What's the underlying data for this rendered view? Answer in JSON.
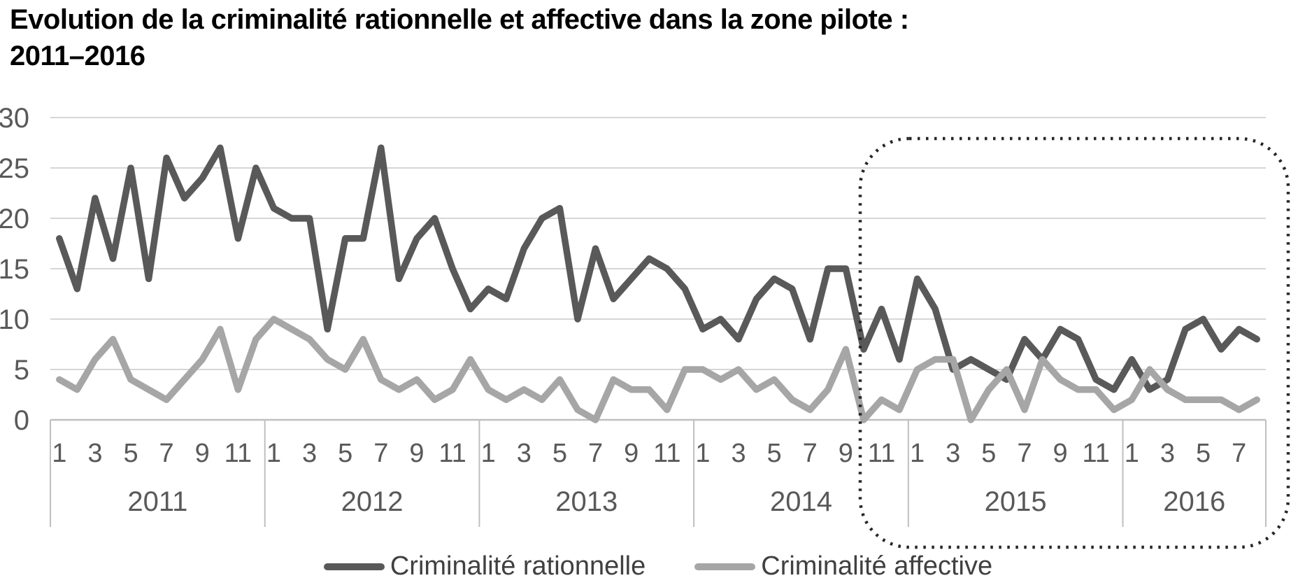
{
  "title": {
    "line1": "Evolution de la criminalité rationnelle et affective dans la zone pilote :",
    "line2": "2011–2016"
  },
  "colors": {
    "series_rationnelle": "#595959",
    "series_affective": "#a6a6a6",
    "gridline": "#d6d6d6",
    "axis_line": "#bfbfbf",
    "tick_text": "#595959",
    "legend_text": "#404040",
    "highlight_box": "#262626",
    "background": "#ffffff"
  },
  "legend": {
    "items": [
      {
        "label": "Criminalité rationnelle",
        "color": "#595959"
      },
      {
        "label": "Criminalité affective",
        "color": "#a6a6a6"
      }
    ]
  },
  "chart_data": {
    "type": "line",
    "title": "Evolution de la criminalité rationnelle et affective dans la zone pilote : 2011–2016",
    "xlabel": "",
    "ylabel": "",
    "ylim": [
      0,
      30
    ],
    "yticks": [
      0,
      5,
      10,
      15,
      20,
      25,
      30
    ],
    "grid": true,
    "legend_position": "bottom",
    "x_unit": "month",
    "years": [
      {
        "label": "2011",
        "num_months": 12,
        "tick_labels": [
          "1",
          "3",
          "5",
          "7",
          "9",
          "11"
        ]
      },
      {
        "label": "2012",
        "num_months": 12,
        "tick_labels": [
          "1",
          "3",
          "5",
          "7",
          "9",
          "11"
        ]
      },
      {
        "label": "2013",
        "num_months": 12,
        "tick_labels": [
          "1",
          "3",
          "5",
          "7",
          "9",
          "11"
        ]
      },
      {
        "label": "2014",
        "num_months": 12,
        "tick_labels": [
          "1",
          "3",
          "5",
          "7",
          "9",
          "11"
        ]
      },
      {
        "label": "2015",
        "num_months": 12,
        "tick_labels": [
          "1",
          "3",
          "5",
          "7",
          "9",
          "11"
        ]
      },
      {
        "label": "2016",
        "num_months": 8,
        "tick_labels": [
          "1",
          "3",
          "5",
          "7"
        ]
      }
    ],
    "series": [
      {
        "name": "Criminalité rationnelle",
        "color": "#595959",
        "values_by_year": {
          "2011": [
            18,
            13,
            22,
            16,
            25,
            14,
            26,
            22,
            24,
            27,
            18,
            25
          ],
          "2012": [
            21,
            20,
            20,
            9,
            18,
            18,
            27,
            14,
            18,
            20,
            15,
            11
          ],
          "2013": [
            13,
            12,
            17,
            20,
            21,
            10,
            17,
            12,
            14,
            16,
            15,
            13
          ],
          "2014": [
            9,
            10,
            8,
            12,
            14,
            13,
            8,
            15,
            15,
            7,
            11,
            6
          ],
          "2015": [
            14,
            11,
            5,
            6,
            5,
            4,
            8,
            6,
            9,
            8,
            4,
            3
          ],
          "2016": [
            6,
            3,
            4,
            9,
            10,
            7,
            9,
            8
          ]
        }
      },
      {
        "name": "Criminalité affective",
        "color": "#a6a6a6",
        "values_by_year": {
          "2011": [
            4,
            3,
            6,
            8,
            4,
            3,
            2,
            4,
            6,
            9,
            3,
            8
          ],
          "2012": [
            10,
            9,
            8,
            6,
            5,
            8,
            4,
            3,
            4,
            2,
            3,
            6
          ],
          "2013": [
            3,
            2,
            3,
            2,
            4,
            1,
            0,
            4,
            3,
            3,
            1,
            5
          ],
          "2014": [
            5,
            4,
            5,
            3,
            4,
            2,
            1,
            3,
            7,
            0,
            2,
            1
          ],
          "2015": [
            5,
            6,
            6,
            0,
            3,
            5,
            1,
            6,
            4,
            3,
            3,
            1
          ],
          "2016": [
            2,
            5,
            3,
            2,
            2,
            2,
            1,
            2
          ]
        }
      }
    ],
    "annotations": [
      {
        "type": "dotted-rounded-box",
        "covers_years": "2015–2016",
        "color": "#262626"
      }
    ]
  }
}
